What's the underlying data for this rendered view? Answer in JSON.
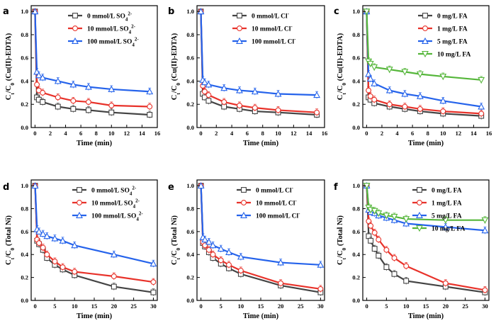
{
  "colors": {
    "black": "#444444",
    "red": "#e8322a",
    "blue": "#2563eb",
    "green": "#55b63a"
  },
  "chart_data": [
    {
      "panel": "a",
      "type": "line",
      "xlabel": "Time (min)",
      "ylabel": "Ct/C0 (Cu(II)-EDTA)",
      "ylabel_main": "C",
      "ylabel_sub_t": "t",
      "ylabel_mid": "/C",
      "ylabel_sub_0": "0",
      "ylabel_tail": " (Cu(II)-EDTA)",
      "xlim": [
        -0.5,
        16
      ],
      "ylim": [
        0.0,
        1.05
      ],
      "xticks": [
        "0",
        "2",
        "4",
        "6",
        "8",
        "10",
        "12",
        "14",
        "16"
      ],
      "xtick_values": [
        0,
        2,
        4,
        6,
        8,
        10,
        12,
        14,
        16
      ],
      "yticks": [
        "0.0",
        "0.2",
        "0.4",
        "0.6",
        "0.8",
        "1.0"
      ],
      "ytick_values": [
        0.0,
        0.2,
        0.4,
        0.6,
        0.8,
        1.0
      ],
      "legend_position": "top-right",
      "x": [
        0,
        0.25,
        0.5,
        1,
        3,
        5,
        7,
        10,
        15
      ],
      "series": [
        {
          "name": "0   mmol/L SO42-",
          "legend_main": "0   mmol/L SO",
          "legend_sub": "4",
          "legend_sup": "2-",
          "color": "black",
          "marker": "square",
          "values": [
            1.0,
            0.26,
            0.24,
            0.22,
            0.18,
            0.16,
            0.15,
            0.13,
            0.11
          ]
        },
        {
          "name": "10   mmol/L SO42-",
          "legend_main": "10   mmol/L SO",
          "legend_sub": "4",
          "legend_sup": "2-",
          "color": "red",
          "marker": "circle",
          "values": [
            1.0,
            0.37,
            0.32,
            0.3,
            0.26,
            0.23,
            0.22,
            0.19,
            0.18
          ]
        },
        {
          "name": "100 mmol/L SO42-",
          "legend_main": "100 mmol/L SO",
          "legend_sub": "4",
          "legend_sup": "2-",
          "color": "blue",
          "marker": "triangle",
          "values": [
            1.0,
            0.48,
            0.45,
            0.43,
            0.4,
            0.37,
            0.35,
            0.33,
            0.31
          ]
        }
      ]
    },
    {
      "panel": "b",
      "type": "line",
      "xlabel": "Time (min)",
      "ylabel": "Ct/C0 (Cu(II)-EDTA)",
      "ylabel_main": "C",
      "ylabel_sub_t": "t",
      "ylabel_mid": "/C",
      "ylabel_sub_0": "0",
      "ylabel_tail": " (Cu(II)-EDTA)",
      "xlim": [
        -0.5,
        16
      ],
      "ylim": [
        0.0,
        1.05
      ],
      "xticks": [
        "0",
        "2",
        "4",
        "6",
        "8",
        "10",
        "12",
        "14",
        "16"
      ],
      "xtick_values": [
        0,
        2,
        4,
        6,
        8,
        10,
        12,
        14,
        16
      ],
      "yticks": [
        "0.0",
        "0.2",
        "0.4",
        "0.6",
        "0.8",
        "1.0"
      ],
      "ytick_values": [
        0.0,
        0.2,
        0.4,
        0.6,
        0.8,
        1.0
      ],
      "legend_position": "top-right",
      "x": [
        0,
        0.25,
        0.5,
        1,
        3,
        5,
        7,
        10,
        15
      ],
      "series": [
        {
          "name": "0   mmol/L Cl-",
          "legend_main": "0   mmol/L Cl",
          "legend_sub": "",
          "legend_sup": "-",
          "color": "black",
          "marker": "square",
          "values": [
            1.0,
            0.29,
            0.26,
            0.23,
            0.18,
            0.16,
            0.14,
            0.13,
            0.11
          ]
        },
        {
          "name": "10   mmol/L Cl-",
          "legend_main": "10   mmol/L Cl",
          "legend_sub": "",
          "legend_sup": "-",
          "color": "red",
          "marker": "circle",
          "values": [
            1.0,
            0.36,
            0.31,
            0.28,
            0.22,
            0.19,
            0.17,
            0.15,
            0.13
          ]
        },
        {
          "name": "100 mmol/L Cl-",
          "legend_main": "100 mmol/L Cl",
          "legend_sub": "",
          "legend_sup": "-",
          "color": "blue",
          "marker": "triangle",
          "values": [
            1.0,
            0.41,
            0.39,
            0.37,
            0.34,
            0.32,
            0.31,
            0.29,
            0.28
          ]
        }
      ]
    },
    {
      "panel": "c",
      "type": "line",
      "xlabel": "Time (min)",
      "ylabel": "Ct/C0 (Cu(II)-EDTA)",
      "ylabel_main": "C",
      "ylabel_sub_t": "t",
      "ylabel_mid": "/C",
      "ylabel_sub_0": "0",
      "ylabel_tail": " (Cu(II)-EDTA)",
      "xlim": [
        -0.5,
        16
      ],
      "ylim": [
        0.0,
        1.05
      ],
      "xticks": [
        "0",
        "2",
        "4",
        "6",
        "8",
        "10",
        "12",
        "14",
        "16"
      ],
      "xtick_values": [
        0,
        2,
        4,
        6,
        8,
        10,
        12,
        14,
        16
      ],
      "yticks": [
        "0.0",
        "0.2",
        "0.4",
        "0.6",
        "0.8",
        "1.0"
      ],
      "ytick_values": [
        0.0,
        0.2,
        0.4,
        0.6,
        0.8,
        1.0
      ],
      "legend_position": "top-right",
      "x": [
        0,
        0.25,
        0.5,
        1,
        3,
        5,
        7,
        10,
        15
      ],
      "series": [
        {
          "name": "0   mg/L FA",
          "legend_main": "0   mg/L FA",
          "legend_sub": "",
          "legend_sup": "",
          "color": "black",
          "marker": "square",
          "values": [
            1.0,
            0.26,
            0.24,
            0.21,
            0.18,
            0.16,
            0.14,
            0.12,
            0.1
          ]
        },
        {
          "name": "1   mg/L FA",
          "legend_main": "1   mg/L FA",
          "legend_sub": "",
          "legend_sup": "",
          "color": "red",
          "marker": "circle",
          "values": [
            1.0,
            0.32,
            0.27,
            0.24,
            0.2,
            0.18,
            0.16,
            0.14,
            0.12
          ]
        },
        {
          "name": "5   mg/L FA",
          "legend_main": "5   mg/L FA",
          "legend_sub": "",
          "legend_sup": "",
          "color": "blue",
          "marker": "triangle",
          "values": [
            1.0,
            0.46,
            0.42,
            0.38,
            0.32,
            0.29,
            0.27,
            0.23,
            0.18
          ]
        },
        {
          "name": "10 mg/L FA",
          "legend_main": "10 mg/L FA",
          "legend_sub": "",
          "legend_sup": "",
          "color": "green",
          "marker": "triangle-down",
          "values": [
            1.0,
            0.57,
            0.55,
            0.52,
            0.5,
            0.48,
            0.46,
            0.44,
            0.41
          ]
        }
      ]
    },
    {
      "panel": "d",
      "type": "line",
      "xlabel": "Time (min)",
      "ylabel": "Ct/C0 (Total Ni)",
      "ylabel_main": "C",
      "ylabel_sub_t": "t",
      "ylabel_mid": "/C",
      "ylabel_sub_0": "0",
      "ylabel_tail": " (Total Ni)",
      "xlim": [
        -1,
        31
      ],
      "ylim": [
        0.0,
        1.05
      ],
      "xticks": [
        "0",
        "5",
        "10",
        "15",
        "20",
        "25",
        "30"
      ],
      "xtick_values": [
        0,
        5,
        10,
        15,
        20,
        25,
        30
      ],
      "yticks": [
        "0.0",
        "0.2",
        "0.4",
        "0.6",
        "0.8",
        "1.0"
      ],
      "ytick_values": [
        0.0,
        0.2,
        0.4,
        0.6,
        0.8,
        1.0
      ],
      "legend_position": "top-right",
      "x": [
        0,
        0.5,
        1,
        2,
        3,
        5,
        7,
        10,
        20,
        30
      ],
      "series": [
        {
          "name": "0   mmol/L SO42-",
          "legend_main": "0   mmol/L SO",
          "legend_sub": "4",
          "legend_sup": "2-",
          "color": "black",
          "marker": "square",
          "values": [
            1.0,
            0.52,
            0.49,
            0.44,
            0.37,
            0.31,
            0.27,
            0.22,
            0.12,
            0.07
          ]
        },
        {
          "name": "10   mmol/L SO42-",
          "legend_main": "10   mmol/L SO",
          "legend_sub": "4",
          "legend_sup": "2-",
          "color": "red",
          "marker": "circle",
          "values": [
            1.0,
            0.53,
            0.5,
            0.46,
            0.4,
            0.34,
            0.29,
            0.25,
            0.21,
            0.16
          ]
        },
        {
          "name": "100 mmol/L SO42-",
          "legend_main": "100 mmol/L SO",
          "legend_sub": "4",
          "legend_sup": "2-",
          "color": "blue",
          "marker": "triangle",
          "values": [
            1.0,
            0.62,
            0.6,
            0.58,
            0.56,
            0.54,
            0.52,
            0.48,
            0.4,
            0.32
          ]
        }
      ]
    },
    {
      "panel": "e",
      "type": "line",
      "xlabel": "Time (min)",
      "ylabel": "Ct/C0 (Total Ni)",
      "ylabel_main": "C",
      "ylabel_sub_t": "t",
      "ylabel_mid": "/C",
      "ylabel_sub_0": "0",
      "ylabel_tail": " (Total Ni)",
      "xlim": [
        -1,
        31
      ],
      "ylim": [
        0.0,
        1.05
      ],
      "xticks": [
        "0",
        "5",
        "10",
        "15",
        "20",
        "25",
        "30"
      ],
      "xtick_values": [
        0,
        5,
        10,
        15,
        20,
        25,
        30
      ],
      "yticks": [
        "0.0",
        "0.2",
        "0.4",
        "0.6",
        "0.8",
        "1.0"
      ],
      "ytick_values": [
        0.0,
        0.2,
        0.4,
        0.6,
        0.8,
        1.0
      ],
      "legend_position": "top-right",
      "x": [
        0,
        0.5,
        1,
        2,
        3,
        5,
        7,
        10,
        20,
        30
      ],
      "series": [
        {
          "name": "0   mmol/L Cl-",
          "legend_main": "0   mmol/L Cl",
          "legend_sub": "",
          "legend_sup": "-",
          "color": "black",
          "marker": "square",
          "values": [
            1.0,
            0.5,
            0.47,
            0.42,
            0.37,
            0.32,
            0.28,
            0.23,
            0.13,
            0.07
          ]
        },
        {
          "name": "10   mmol/L Cl-",
          "legend_main": "10   mmol/L Cl",
          "legend_sub": "",
          "legend_sup": "-",
          "color": "red",
          "marker": "circle",
          "values": [
            1.0,
            0.51,
            0.48,
            0.44,
            0.4,
            0.35,
            0.31,
            0.26,
            0.15,
            0.1
          ]
        },
        {
          "name": "100 mmol/L Cl-",
          "legend_main": "100 mmol/L Cl",
          "legend_sub": "",
          "legend_sup": "-",
          "color": "blue",
          "marker": "triangle",
          "values": [
            1.0,
            0.55,
            0.53,
            0.51,
            0.48,
            0.45,
            0.42,
            0.38,
            0.33,
            0.31
          ]
        }
      ]
    },
    {
      "panel": "f",
      "type": "line",
      "xlabel": "Time (min)",
      "ylabel": "Ct/C0 (Total Ni)",
      "ylabel_main": "C",
      "ylabel_sub_t": "t",
      "ylabel_mid": "/C",
      "ylabel_sub_0": "0",
      "ylabel_tail": " (Total Ni)",
      "xlim": [
        -1,
        31
      ],
      "ylim": [
        0.0,
        1.05
      ],
      "xticks": [
        "0",
        "5",
        "10",
        "15",
        "20",
        "25",
        "30"
      ],
      "xtick_values": [
        0,
        5,
        10,
        15,
        20,
        25,
        30
      ],
      "yticks": [
        "0.0",
        "0.2",
        "0.4",
        "0.6",
        "0.8",
        "1.0"
      ],
      "ytick_values": [
        0.0,
        0.2,
        0.4,
        0.6,
        0.8,
        1.0
      ],
      "legend_position": "top-right",
      "x": [
        0,
        0.5,
        1,
        2,
        3,
        5,
        7,
        10,
        20,
        30
      ],
      "series": [
        {
          "name": "0   mg/L FA",
          "legend_main": "0   mg/L FA",
          "legend_sub": "",
          "legend_sup": "",
          "color": "black",
          "marker": "square",
          "values": [
            1.0,
            0.56,
            0.52,
            0.45,
            0.39,
            0.29,
            0.23,
            0.17,
            0.12,
            0.07
          ]
        },
        {
          "name": "1   mg/L FA",
          "legend_main": "1   mg/L FA",
          "legend_sub": "",
          "legend_sup": "",
          "color": "red",
          "marker": "circle",
          "values": [
            1.0,
            0.69,
            0.65,
            0.59,
            0.53,
            0.44,
            0.37,
            0.3,
            0.15,
            0.09
          ]
        },
        {
          "name": "5   mg/L FA",
          "legend_main": "5   mg/L FA",
          "legend_sub": "",
          "legend_sup": "",
          "color": "blue",
          "marker": "triangle",
          "values": [
            1.0,
            0.79,
            0.77,
            0.76,
            0.74,
            0.72,
            0.7,
            0.67,
            0.64,
            0.61
          ]
        },
        {
          "name": "10 mg/L FA",
          "legend_main": "10 mg/L FA",
          "legend_sub": "",
          "legend_sup": "",
          "color": "green",
          "marker": "triangle-down",
          "values": [
            1.0,
            0.81,
            0.79,
            0.78,
            0.76,
            0.74,
            0.73,
            0.71,
            0.7,
            0.7
          ]
        }
      ]
    }
  ]
}
